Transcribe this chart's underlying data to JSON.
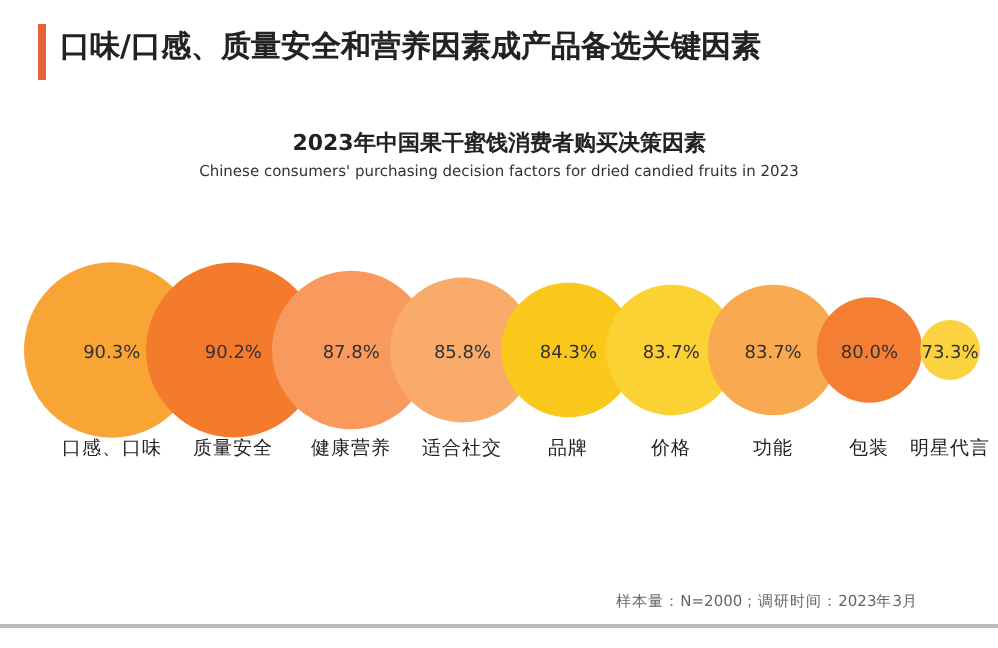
{
  "chart_data": {
    "type": "other",
    "title": "口味/口感、质量安全和营养因素成产品备选关键因素",
    "subtitle": "2023年中国果干蜜饯消费者购买决策因素",
    "annotations": [
      "Chinese consumers' purchasing decision factors for dried candied fruits in 2023",
      "样本量：N=2000；调研时间：2023年3月"
    ],
    "categories": [
      "口感、口味",
      "质量安全",
      "健康营养",
      "适合社交",
      "品牌",
      "价格",
      "功能",
      "包装",
      "明星代言"
    ],
    "values": [
      90.3,
      90.2,
      87.8,
      85.8,
      84.3,
      83.7,
      83.7,
      80.0,
      73.3
    ],
    "value_labels": [
      "90.3%",
      "90.2%",
      "87.8%",
      "85.8%",
      "84.3%",
      "83.7%",
      "83.7%",
      "80.0%",
      "73.3%"
    ],
    "colors": [
      "#f8a535",
      "#f47b2b",
      "#f89a5e",
      "#f9ab6c",
      "#fac81b",
      "#fbd133",
      "#f9a950",
      "#f47f34",
      "#fbd23f"
    ]
  }
}
